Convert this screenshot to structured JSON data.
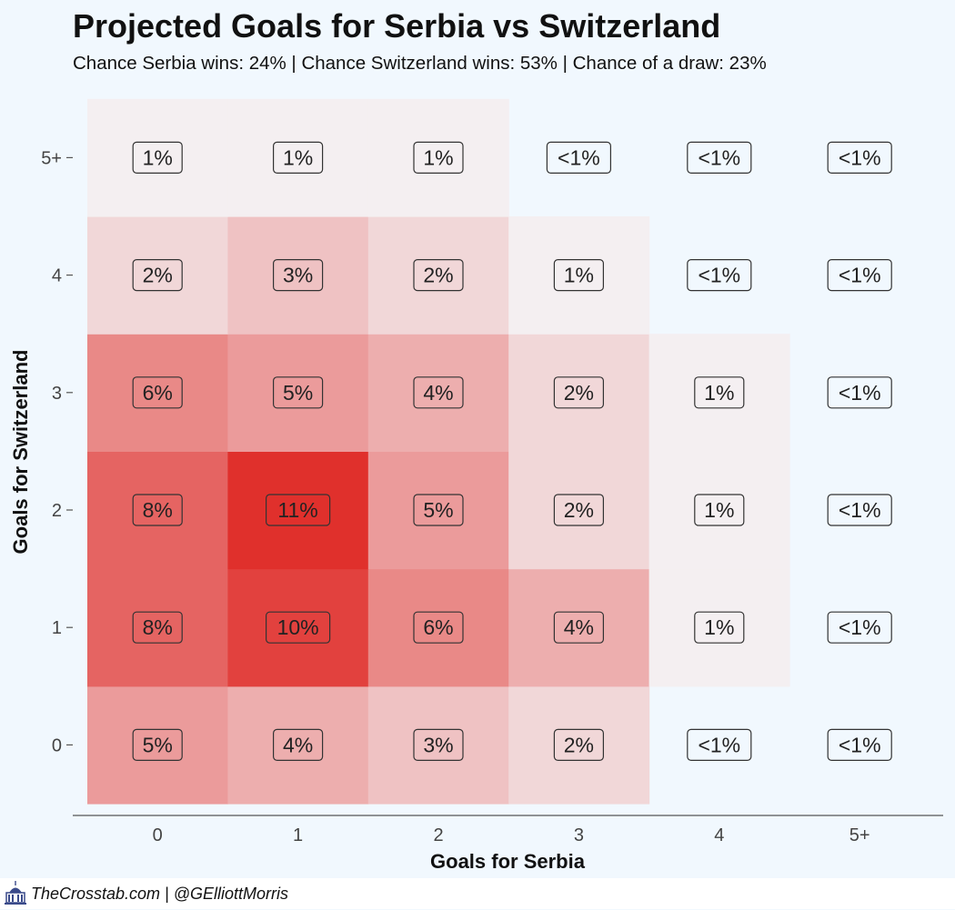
{
  "title": "Projected Goals for Serbia vs Switzerland",
  "subtitle": "Chance Serbia wins: 24% | Chance Switzerland wins: 53% | Chance of a draw: 23%",
  "footer": {
    "credit": "TheCrosstab.com | @GElliottMorris",
    "logo_icon": "capitol-building-icon"
  },
  "colors": {
    "background": "#f1f8fe",
    "tile_low": "#f4eff1",
    "tile_high": "#e0302c",
    "label_border": "#333333",
    "text": "#111111"
  },
  "chart_data": {
    "type": "heatmap",
    "xlabel": "Goals for Serbia",
    "ylabel": "Goals for Switzerland",
    "x_categories": [
      "0",
      "1",
      "2",
      "3",
      "4",
      "5+"
    ],
    "y_categories": [
      "0",
      "1",
      "2",
      "3",
      "4",
      "5+"
    ],
    "cells": [
      {
        "x": "0",
        "y": "0",
        "value": 5,
        "label": "5%"
      },
      {
        "x": "1",
        "y": "0",
        "value": 4,
        "label": "4%"
      },
      {
        "x": "2",
        "y": "0",
        "value": 3,
        "label": "3%"
      },
      {
        "x": "3",
        "y": "0",
        "value": 2,
        "label": "2%"
      },
      {
        "x": "4",
        "y": "0",
        "value": 0.5,
        "label": "<1%"
      },
      {
        "x": "5+",
        "y": "0",
        "value": 0.5,
        "label": "<1%"
      },
      {
        "x": "0",
        "y": "1",
        "value": 8,
        "label": "8%"
      },
      {
        "x": "1",
        "y": "1",
        "value": 10,
        "label": "10%"
      },
      {
        "x": "2",
        "y": "1",
        "value": 6,
        "label": "6%"
      },
      {
        "x": "3",
        "y": "1",
        "value": 4,
        "label": "4%"
      },
      {
        "x": "4",
        "y": "1",
        "value": 1,
        "label": "1%"
      },
      {
        "x": "5+",
        "y": "1",
        "value": 0.5,
        "label": "<1%"
      },
      {
        "x": "0",
        "y": "2",
        "value": 8,
        "label": "8%"
      },
      {
        "x": "1",
        "y": "2",
        "value": 11,
        "label": "11%"
      },
      {
        "x": "2",
        "y": "2",
        "value": 5,
        "label": "5%"
      },
      {
        "x": "3",
        "y": "2",
        "value": 2,
        "label": "2%"
      },
      {
        "x": "4",
        "y": "2",
        "value": 1,
        "label": "1%"
      },
      {
        "x": "5+",
        "y": "2",
        "value": 0.5,
        "label": "<1%"
      },
      {
        "x": "0",
        "y": "3",
        "value": 6,
        "label": "6%"
      },
      {
        "x": "1",
        "y": "3",
        "value": 5,
        "label": "5%"
      },
      {
        "x": "2",
        "y": "3",
        "value": 4,
        "label": "4%"
      },
      {
        "x": "3",
        "y": "3",
        "value": 2,
        "label": "2%"
      },
      {
        "x": "4",
        "y": "3",
        "value": 1,
        "label": "1%"
      },
      {
        "x": "5+",
        "y": "3",
        "value": 0.5,
        "label": "<1%"
      },
      {
        "x": "0",
        "y": "4",
        "value": 2,
        "label": "2%"
      },
      {
        "x": "1",
        "y": "4",
        "value": 3,
        "label": "3%"
      },
      {
        "x": "2",
        "y": "4",
        "value": 2,
        "label": "2%"
      },
      {
        "x": "3",
        "y": "4",
        "value": 1,
        "label": "1%"
      },
      {
        "x": "4",
        "y": "4",
        "value": 0.5,
        "label": "<1%"
      },
      {
        "x": "5+",
        "y": "4",
        "value": 0.5,
        "label": "<1%"
      },
      {
        "x": "0",
        "y": "5+",
        "value": 1,
        "label": "1%"
      },
      {
        "x": "1",
        "y": "5+",
        "value": 1,
        "label": "1%"
      },
      {
        "x": "2",
        "y": "5+",
        "value": 1,
        "label": "1%"
      },
      {
        "x": "3",
        "y": "5+",
        "value": 0.5,
        "label": "<1%"
      },
      {
        "x": "4",
        "y": "5+",
        "value": 0.5,
        "label": "<1%"
      },
      {
        "x": "5+",
        "y": "5+",
        "value": 0.5,
        "label": "<1%"
      }
    ],
    "visible_tiles": [
      {
        "x": "0",
        "y": "0"
      },
      {
        "x": "1",
        "y": "0"
      },
      {
        "x": "2",
        "y": "0"
      },
      {
        "x": "3",
        "y": "0"
      },
      {
        "x": "0",
        "y": "1"
      },
      {
        "x": "1",
        "y": "1"
      },
      {
        "x": "2",
        "y": "1"
      },
      {
        "x": "3",
        "y": "1"
      },
      {
        "x": "4",
        "y": "1"
      },
      {
        "x": "0",
        "y": "2"
      },
      {
        "x": "1",
        "y": "2"
      },
      {
        "x": "2",
        "y": "2"
      },
      {
        "x": "3",
        "y": "2"
      },
      {
        "x": "4",
        "y": "2"
      },
      {
        "x": "0",
        "y": "3"
      },
      {
        "x": "1",
        "y": "3"
      },
      {
        "x": "2",
        "y": "3"
      },
      {
        "x": "3",
        "y": "3"
      },
      {
        "x": "4",
        "y": "3"
      },
      {
        "x": "0",
        "y": "4"
      },
      {
        "x": "1",
        "y": "4"
      },
      {
        "x": "2",
        "y": "4"
      },
      {
        "x": "3",
        "y": "4"
      },
      {
        "x": "0",
        "y": "5+"
      },
      {
        "x": "1",
        "y": "5+"
      },
      {
        "x": "2",
        "y": "5+"
      }
    ],
    "value_range": [
      1,
      11
    ],
    "grid": false,
    "legend": "none"
  }
}
